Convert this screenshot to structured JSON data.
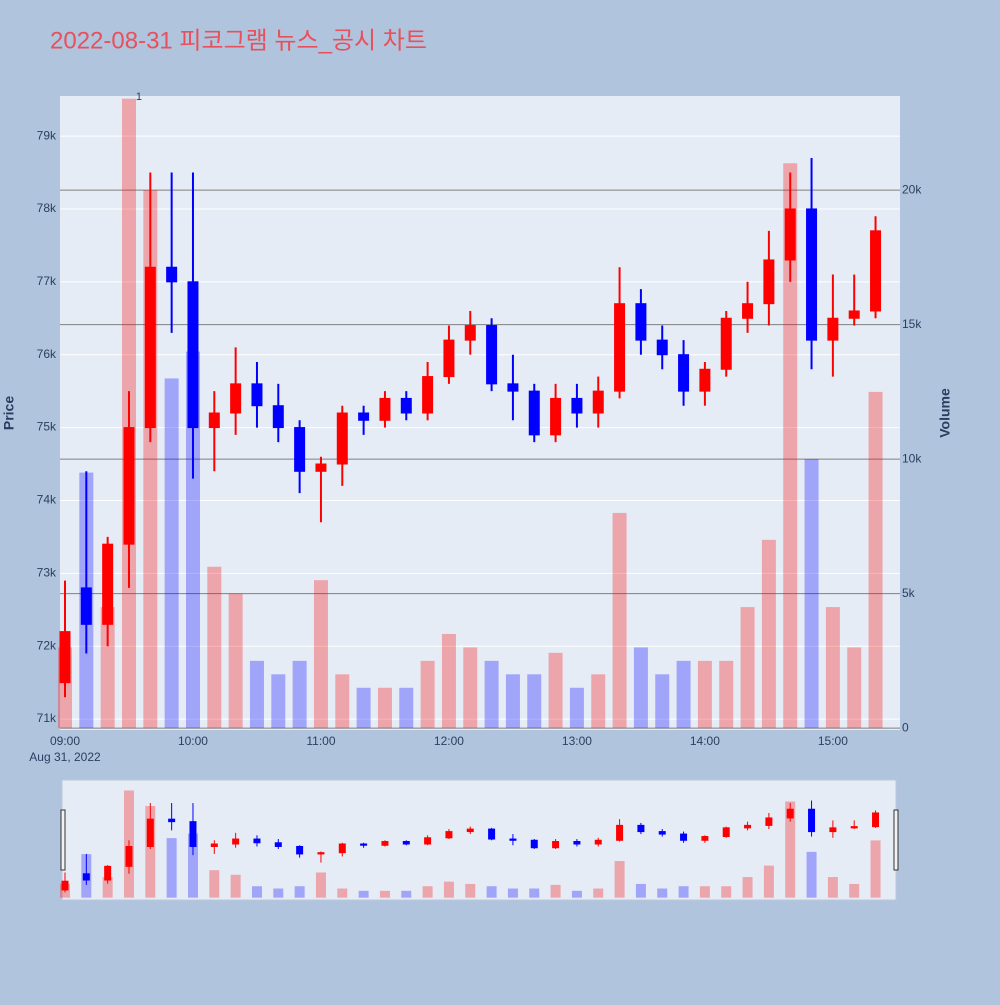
{
  "chart_data": {
    "type": "candlestick",
    "title": "2022-08-31 피코그램 뉴스_공시 차트",
    "y_label": "Price",
    "y2_label": "Volume",
    "x_sublabel": "Aug 31, 2022",
    "categories": [
      "09:00",
      "09:10",
      "09:20",
      "09:30",
      "09:40",
      "09:50",
      "10:00",
      "10:10",
      "10:20",
      "10:30",
      "10:40",
      "10:50",
      "11:00",
      "11:10",
      "11:20",
      "11:30",
      "11:40",
      "11:50",
      "12:00",
      "12:10",
      "12:20",
      "12:30",
      "12:40",
      "12:50",
      "13:00",
      "13:10",
      "13:20",
      "13:30",
      "13:40",
      "13:50",
      "14:00",
      "14:10",
      "14:20",
      "14:30",
      "14:40",
      "14:50",
      "15:00",
      "15:10",
      "15:20"
    ],
    "open": [
      71500,
      72800,
      72300,
      73400,
      75000,
      77200,
      77000,
      75000,
      75200,
      75600,
      75300,
      75000,
      74400,
      74500,
      75200,
      75100,
      75400,
      75200,
      75700,
      76200,
      76400,
      75600,
      75500,
      74900,
      75400,
      75200,
      75500,
      76700,
      76200,
      76000,
      75500,
      75800,
      76500,
      76700,
      77300,
      78000,
      76200,
      76500,
      76600
    ],
    "high": [
      72900,
      74400,
      73500,
      75500,
      78500,
      78500,
      78500,
      75500,
      76100,
      75900,
      75600,
      75100,
      74600,
      75300,
      75300,
      75500,
      75500,
      75900,
      76400,
      76600,
      76500,
      76000,
      75600,
      75600,
      75600,
      75700,
      77200,
      76900,
      76400,
      76200,
      75900,
      76600,
      77000,
      77700,
      78500,
      78700,
      77100,
      77100,
      77900
    ],
    "low": [
      71300,
      71900,
      72000,
      72800,
      74800,
      76300,
      74300,
      74400,
      74900,
      75000,
      74800,
      74100,
      73700,
      74200,
      74900,
      75000,
      75100,
      75100,
      75600,
      76000,
      75500,
      75100,
      74800,
      74800,
      75000,
      75000,
      75400,
      76000,
      75800,
      75300,
      75300,
      75700,
      76300,
      76400,
      77000,
      75800,
      75700,
      76400,
      76500
    ],
    "close": [
      72200,
      72300,
      73400,
      75000,
      77200,
      77000,
      75000,
      75200,
      75600,
      75300,
      75000,
      74400,
      74500,
      75200,
      75100,
      75400,
      75200,
      75700,
      76200,
      76400,
      75600,
      75500,
      74900,
      75400,
      75200,
      75500,
      76700,
      76200,
      76000,
      75500,
      75800,
      76500,
      76700,
      77300,
      78000,
      76200,
      76500,
      76600,
      77700
    ],
    "volume": [
      3000,
      9500,
      4500,
      23400,
      20000,
      13000,
      14000,
      6000,
      5000,
      2500,
      2000,
      2500,
      5500,
      2000,
      1500,
      1500,
      1500,
      2500,
      3500,
      3000,
      2500,
      2000,
      2000,
      2800,
      1500,
      2000,
      8000,
      3000,
      2000,
      2500,
      2500,
      2500,
      4500,
      7000,
      21000,
      10000,
      4500,
      3000,
      12500
    ],
    "increasing_color": "#ff0000",
    "decreasing_color": "#0000ff",
    "ylim": [
      70850,
      79550
    ],
    "yticks": [
      {
        "value": 71000,
        "label": "71k"
      },
      {
        "value": 72000,
        "label": "72k"
      },
      {
        "value": 73000,
        "label": "73k"
      },
      {
        "value": 74000,
        "label": "74k"
      },
      {
        "value": 75000,
        "label": "75k"
      },
      {
        "value": 76000,
        "label": "76k"
      },
      {
        "value": 77000,
        "label": "77k"
      },
      {
        "value": 78000,
        "label": "78k"
      },
      {
        "value": 79000,
        "label": "79k"
      }
    ],
    "y2lim": [
      -70,
      23500
    ],
    "y2ticks": [
      0,
      {
        "value": 5000,
        "label": "5k"
      },
      {
        "value": 10000,
        "label": "10k"
      },
      {
        "value": 15000,
        "label": "15k"
      },
      {
        "value": 20000,
        "label": "20k"
      }
    ],
    "xticks": [
      "09:00",
      "10:00",
      "11:00",
      "12:00",
      "13:00",
      "14:00",
      "15:00"
    ],
    "annotations": [
      {
        "text": "1",
        "x": "09:30"
      }
    ],
    "grid": true,
    "rangeslider": true
  }
}
